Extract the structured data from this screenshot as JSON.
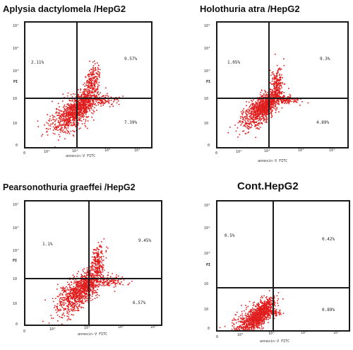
{
  "figure": {
    "panels": [
      {
        "title": "Aplysia dactylomela /HepG2",
        "quadrants": {
          "upper_left": "2.11%",
          "upper_right": "9.57%",
          "lower_right": "7.39%"
        }
      },
      {
        "title": "Holothuria atra /HepG2",
        "quadrants": {
          "upper_left": "1.05%",
          "upper_right": "9.3%",
          "lower_right": "4.89%"
        }
      },
      {
        "title": "Pearsonothuria graeffei /HepG2",
        "quadrants": {
          "upper_left": "1.1%",
          "upper_right": "9.45%",
          "lower_right": "6.57%"
        }
      },
      {
        "title": "Cont.HepG2",
        "quadrants": {
          "upper_left": "0.5%",
          "upper_right": "0.42%",
          "lower_right": "0.89%"
        }
      }
    ]
  },
  "chart_data": [
    {
      "type": "scatter",
      "title": "Aplysia dactylomela /HepG2",
      "xlabel": "annexin-V FITC",
      "ylabel": "PI",
      "x_scale": "log",
      "y_scale": "log",
      "xlim": [
        1,
        1000000
      ],
      "ylim": [
        1,
        100000
      ],
      "x_ticks": [
        "0",
        "10²",
        "10³",
        "10⁴",
        "10⁵"
      ],
      "y_ticks": [
        "10⁵",
        "10⁴",
        "10³",
        "10",
        "10",
        "0"
      ],
      "quadrant_gate": {
        "x": 1000,
        "y": 1000
      },
      "point_color": "#e01e1e",
      "quadrants": [
        {
          "name": "upper-left",
          "percent": 2.11
        },
        {
          "name": "upper-right",
          "percent": 9.57
        },
        {
          "name": "lower-right",
          "percent": 7.39
        }
      ]
    },
    {
      "type": "scatter",
      "title": "Holothuria atra /HepG2",
      "xlabel": "annexin-V FITC",
      "ylabel": "PI",
      "x_scale": "log",
      "y_scale": "log",
      "xlim": [
        1,
        1000000
      ],
      "ylim": [
        1,
        100000
      ],
      "x_ticks": [
        "0",
        "10²",
        "10³",
        "10⁴",
        "10⁵"
      ],
      "y_ticks": [
        "10⁵",
        "10⁴",
        "10³",
        "10",
        "10",
        "0"
      ],
      "quadrant_gate": {
        "x": 1000,
        "y": 1000
      },
      "point_color": "#e01e1e",
      "quadrants": [
        {
          "name": "upper-left",
          "percent": 1.05
        },
        {
          "name": "upper-right",
          "percent": 9.3
        },
        {
          "name": "lower-right",
          "percent": 4.89
        }
      ]
    },
    {
      "type": "scatter",
      "title": "Pearsonothuria graeffei /HepG2",
      "xlabel": "annexin-V FITC",
      "ylabel": "PI",
      "x_scale": "log",
      "y_scale": "log",
      "xlim": [
        1,
        1000000
      ],
      "ylim": [
        1,
        100000
      ],
      "x_ticks": [
        "0",
        "10²",
        "10³",
        "10⁴",
        "10⁵"
      ],
      "y_ticks": [
        "10⁵",
        "10⁴",
        "10³",
        "10",
        "10",
        "0"
      ],
      "quadrant_gate": {
        "x": 1000,
        "y": 1000
      },
      "point_color": "#e01e1e",
      "quadrants": [
        {
          "name": "upper-left",
          "percent": 1.1
        },
        {
          "name": "upper-right",
          "percent": 9.45
        },
        {
          "name": "lower-right",
          "percent": 6.57
        }
      ]
    },
    {
      "type": "scatter",
      "title": "Cont.HepG2",
      "xlabel": "annexin-V FITC",
      "ylabel": "PI",
      "x_scale": "log",
      "y_scale": "log",
      "xlim": [
        1,
        1000000
      ],
      "ylim": [
        1,
        100000
      ],
      "x_ticks": [
        "0",
        "10²",
        "10³",
        "10⁴",
        "10⁵"
      ],
      "y_ticks": [
        "10⁵",
        "10⁴",
        "10³",
        "10",
        "10",
        "0"
      ],
      "quadrant_gate": {
        "x": 1000,
        "y": 300
      },
      "point_color": "#e01e1e",
      "quadrants": [
        {
          "name": "upper-left",
          "percent": 0.5
        },
        {
          "name": "upper-right",
          "percent": 0.42
        },
        {
          "name": "lower-right",
          "percent": 0.89
        }
      ]
    }
  ]
}
